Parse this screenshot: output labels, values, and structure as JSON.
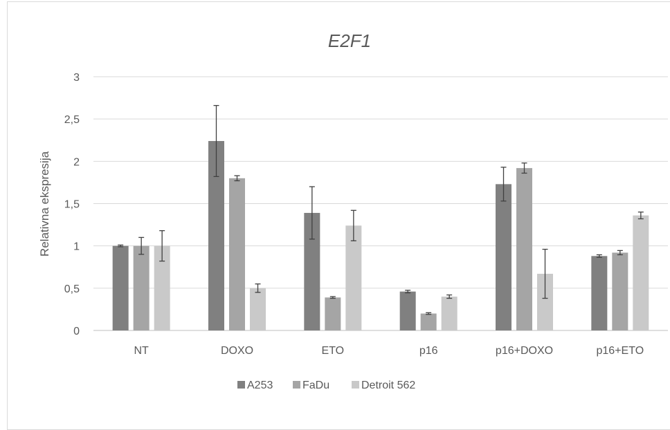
{
  "chart_data": {
    "type": "bar",
    "title": "E2F1",
    "xlabel": "",
    "ylabel": "Relativna ekspresija",
    "ylim": [
      0,
      3
    ],
    "yticks": [
      "0",
      "0,5",
      "1",
      "1,5",
      "2",
      "2,5",
      "3"
    ],
    "grid": true,
    "legend_position": "bottom",
    "categories": [
      "NT",
      "DOXO",
      "ETO",
      "p16",
      "p16+DOXO",
      "p16+ETO"
    ],
    "series": [
      {
        "name": "A253",
        "color": "#808080",
        "values": [
          1.0,
          2.24,
          1.39,
          0.46,
          1.73,
          0.88
        ],
        "errors": [
          0.01,
          0.42,
          0.31,
          0.015,
          0.2,
          0.015
        ]
      },
      {
        "name": "FaDu",
        "color": "#a5a5a5",
        "values": [
          1.0,
          1.8,
          0.39,
          0.2,
          1.92,
          0.92
        ],
        "errors": [
          0.1,
          0.03,
          0.01,
          0.01,
          0.06,
          0.025
        ]
      },
      {
        "name": "Detroit 562",
        "color": "#c9c9c9",
        "values": [
          1.0,
          0.5,
          1.24,
          0.4,
          0.67,
          1.36
        ],
        "errors": [
          0.18,
          0.05,
          0.18,
          0.02,
          0.29,
          0.04
        ]
      }
    ]
  }
}
